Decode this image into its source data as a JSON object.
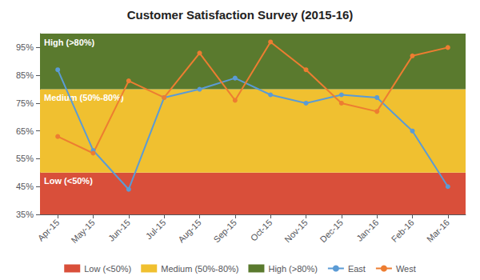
{
  "chart_data": {
    "type": "line",
    "title": "Customer Satisfaction Survey (2015-16)",
    "categories": [
      "Apr-15",
      "May-15",
      "Jun-15",
      "Jul-15",
      "Aug-15",
      "Sep-15",
      "Oct-15",
      "Nov-15",
      "Dec-15",
      "Jan-16",
      "Feb-16",
      "Mar-16"
    ],
    "series": [
      {
        "name": "East",
        "color": "#5B9BD5",
        "marker": "circle",
        "values": [
          87,
          58,
          44,
          77,
          80,
          84,
          78,
          75,
          78,
          77,
          65,
          45
        ]
      },
      {
        "name": "West",
        "color": "#ED7D31",
        "marker": "circle",
        "values": [
          63,
          57,
          83,
          77,
          93,
          76,
          97,
          87,
          75,
          72,
          92,
          95
        ]
      }
    ],
    "bands": [
      {
        "name": "Low (<50%)",
        "from": 35,
        "to": 50,
        "color": "#D94F3A"
      },
      {
        "name": "Medium (50%-80%)",
        "from": 50,
        "to": 80,
        "color": "#F0C030"
      },
      {
        "name": "High (>80%)",
        "from": 80,
        "to": 100,
        "color": "#5A7A2E"
      }
    ],
    "ylim": [
      35,
      100
    ],
    "yticks": [
      {
        "value": 35,
        "label": "35%"
      },
      {
        "value": 45,
        "label": "45%"
      },
      {
        "value": 55,
        "label": "55%"
      },
      {
        "value": 65,
        "label": "65%"
      },
      {
        "value": 75,
        "label": "75%"
      },
      {
        "value": 85,
        "label": "85%"
      },
      {
        "value": 95,
        "label": "95%"
      }
    ],
    "grid": false,
    "legend": "bottom"
  }
}
